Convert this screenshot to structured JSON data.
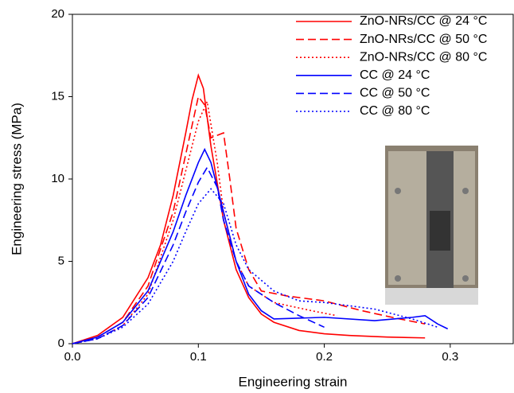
{
  "chart_data": {
    "type": "line",
    "x_label": "Engineering strain",
    "y_label": "Engineering stress (MPa)",
    "xlim": [
      0,
      0.35
    ],
    "ylim": [
      0,
      20
    ],
    "xticks": [
      {
        "value": 0,
        "label": "0.0"
      },
      0.1,
      0.2,
      0.3
    ],
    "yticks": [
      0,
      5,
      10,
      15,
      20
    ],
    "legend": "upper right",
    "series": [
      {
        "name": "ZnO-NRs/CC @ 24 °C",
        "color": "#ff0000",
        "dash": "solid",
        "x": [
          0,
          0.02,
          0.04,
          0.06,
          0.07,
          0.08,
          0.09,
          0.095,
          0.1,
          0.104,
          0.11,
          0.12,
          0.13,
          0.14,
          0.15,
          0.16,
          0.18,
          0.2,
          0.22,
          0.25,
          0.28
        ],
        "values": [
          0,
          0.5,
          1.6,
          4,
          6,
          9,
          12.8,
          14.8,
          16.3,
          15.5,
          12,
          7.5,
          4.5,
          2.8,
          1.8,
          1.3,
          0.8,
          0.6,
          0.5,
          0.4,
          0.35
        ]
      },
      {
        "name": "ZnO-NRs/CC @ 50 °C",
        "color": "#ff0000",
        "dash": "dashed",
        "x": [
          0,
          0.02,
          0.04,
          0.06,
          0.08,
          0.09,
          0.1,
          0.105,
          0.11,
          0.12,
          0.125,
          0.13,
          0.14,
          0.15,
          0.17,
          0.2,
          0.23,
          0.26,
          0.28
        ],
        "values": [
          0,
          0.4,
          1.3,
          3.5,
          8,
          11.5,
          15,
          14.5,
          12.5,
          12.8,
          10,
          7,
          4.5,
          3.2,
          2.9,
          2.6,
          2,
          1.5,
          1.2
        ]
      },
      {
        "name": "ZnO-NRs/CC @ 80 °C",
        "color": "#ff0000",
        "dash": "dotted",
        "x": [
          0,
          0.02,
          0.04,
          0.06,
          0.08,
          0.09,
          0.1,
          0.107,
          0.115,
          0.12,
          0.13,
          0.14,
          0.16,
          0.19,
          0.21
        ],
        "values": [
          0,
          0.3,
          1.1,
          3,
          7.5,
          10.5,
          13.5,
          14.7,
          11,
          8,
          5,
          3.5,
          2.5,
          2,
          1.7
        ]
      },
      {
        "name": "CC @ 24 °C",
        "color": "#0000ff",
        "dash": "solid",
        "x": [
          0,
          0.02,
          0.04,
          0.06,
          0.08,
          0.09,
          0.1,
          0.105,
          0.11,
          0.12,
          0.13,
          0.14,
          0.15,
          0.16,
          0.2,
          0.24,
          0.27,
          0.28,
          0.29,
          0.298
        ],
        "values": [
          0,
          0.4,
          1.3,
          3.2,
          6.8,
          9,
          11,
          11.8,
          11,
          8,
          5,
          3,
          2,
          1.5,
          1.6,
          1.4,
          1.6,
          1.7,
          1.2,
          0.9
        ]
      },
      {
        "name": "CC @ 50 °C",
        "color": "#0000ff",
        "dash": "dashed",
        "x": [
          0,
          0.02,
          0.04,
          0.06,
          0.08,
          0.09,
          0.1,
          0.107,
          0.115,
          0.12,
          0.13,
          0.14,
          0.16,
          0.18,
          0.2
        ],
        "values": [
          0,
          0.3,
          1.1,
          2.8,
          6,
          8,
          9.8,
          10.7,
          9.5,
          7.5,
          5,
          3.5,
          2.5,
          1.7,
          1
        ]
      },
      {
        "name": "CC @ 80 °C",
        "color": "#0000ff",
        "dash": "dotted",
        "x": [
          0,
          0.02,
          0.04,
          0.06,
          0.08,
          0.09,
          0.1,
          0.11,
          0.12,
          0.13,
          0.14,
          0.16,
          0.18,
          0.2,
          0.24,
          0.27,
          0.29
        ],
        "values": [
          0,
          0.3,
          1,
          2.4,
          5,
          6.8,
          8.5,
          9.4,
          8.5,
          6,
          4.5,
          3.2,
          2.6,
          2.5,
          2.1,
          1.5,
          1
        ]
      }
    ]
  }
}
